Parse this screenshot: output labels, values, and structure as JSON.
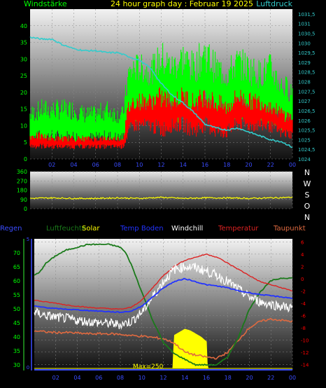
{
  "colors": {
    "windstarke": "#00ff00",
    "luftdruck": "#33cccc",
    "gust": "#ff0000",
    "direction": "#ffff00",
    "regen": "#3a4cff",
    "luftfeuchte": "#1a7a1a",
    "solar": "#ffff00",
    "temp_boden": "#2233ff",
    "windchill": "#ffffff",
    "temperatur": "#dd2222",
    "taupunkt": "#e06a40",
    "left_axis": "#00ff00",
    "right_axis_top": "#33cccc",
    "right_axis_bottom": "#ff0000",
    "xtick": "#3a4cff"
  },
  "chart_data": [
    {
      "type": "line",
      "title": "24 hour graph day : Februar 19 2025",
      "left_axis_label": "Windstärke",
      "right_axis_label": "Luftdruck",
      "left_ticks": [
        "0",
        "5",
        "10",
        "15",
        "20",
        "25",
        "30",
        "35",
        "40"
      ],
      "left_ylim": [
        0,
        45
      ],
      "right_ticks": [
        "1024",
        "1024,5",
        "1025",
        "1025,5",
        "1026",
        "1026,5",
        "1027",
        "1027,5",
        "1028",
        "1028,5",
        "1029",
        "1029,5",
        "1030",
        "1030,5",
        "1031",
        "1031,5"
      ],
      "right_ylim": [
        1024,
        1031.75
      ],
      "x_ticks": [
        "02",
        "04",
        "06",
        "08",
        "10",
        "12",
        "14",
        "16",
        "18",
        "20",
        "22",
        "00"
      ],
      "xlim": [
        0,
        24
      ],
      "grid": true,
      "series": [
        {
          "name": "Windstärke",
          "color_key": "windstarke",
          "x": [
            0,
            1,
            2,
            3,
            4,
            5,
            6,
            7,
            8,
            8.5,
            9,
            9.5,
            10,
            11,
            12,
            13,
            14,
            15,
            16,
            17,
            18,
            19,
            20,
            21,
            22,
            23,
            24
          ],
          "y_min": [
            4,
            4,
            4,
            4,
            4,
            4,
            4,
            4,
            4,
            4,
            8,
            10,
            12,
            12,
            10,
            12,
            10,
            10,
            12,
            10,
            10,
            12,
            10,
            10,
            10,
            8,
            8
          ],
          "y_max": [
            16,
            18,
            18,
            18,
            18,
            16,
            16,
            18,
            16,
            16,
            30,
            32,
            32,
            30,
            36,
            32,
            36,
            32,
            38,
            32,
            30,
            34,
            32,
            30,
            32,
            26,
            24
          ]
        },
        {
          "name": "Gust",
          "color_key": "gust",
          "x": [
            0,
            1,
            2,
            3,
            4,
            5,
            6,
            7,
            8,
            8.5,
            9,
            9.5,
            10,
            11,
            12,
            13,
            14,
            15,
            16,
            17,
            18,
            19,
            20,
            21,
            22,
            23,
            24
          ],
          "y_min": [
            3,
            3,
            3,
            3,
            3,
            3,
            3,
            3,
            3,
            3,
            6,
            8,
            8,
            8,
            6,
            8,
            8,
            6,
            8,
            6,
            6,
            8,
            8,
            8,
            8,
            6,
            6
          ],
          "y_max": [
            8,
            8,
            7,
            7,
            7,
            7,
            7,
            7,
            7,
            7,
            18,
            20,
            20,
            20,
            22,
            20,
            22,
            20,
            22,
            20,
            18,
            22,
            20,
            20,
            18,
            16,
            14
          ]
        },
        {
          "name": "Luftdruck",
          "color_key": "luftdruck",
          "axis": "right",
          "x": [
            0,
            1,
            2,
            3,
            4,
            5,
            6,
            7,
            8,
            9,
            10,
            11,
            12,
            13,
            14,
            15,
            16,
            17,
            18,
            19,
            20,
            21,
            22,
            23,
            24
          ],
          "y": [
            1030.3,
            1030.2,
            1030.2,
            1029.9,
            1029.7,
            1029.6,
            1029.6,
            1029.5,
            1029.5,
            1029.3,
            1029.1,
            1028.7,
            1027.9,
            1027.3,
            1026.9,
            1026.4,
            1025.8,
            1025.6,
            1025.5,
            1025.6,
            1025.4,
            1025.2,
            1025.0,
            1024.9,
            1024.6
          ]
        }
      ]
    },
    {
      "type": "line",
      "title": "",
      "y_ticks": [
        "0",
        "90",
        "180",
        "270",
        "360"
      ],
      "ylim": [
        0,
        360
      ],
      "compass": [
        "N",
        "W",
        "S",
        "O",
        "N"
      ],
      "x_ticks": [
        "02",
        "04",
        "06",
        "08",
        "10",
        "12",
        "14",
        "16",
        "18",
        "20",
        "22",
        "00"
      ],
      "xlim": [
        0,
        24
      ],
      "series": [
        {
          "name": "Windrichtung",
          "color_key": "direction",
          "x": [
            0,
            2,
            4,
            6,
            8,
            10,
            12,
            14,
            16,
            18,
            20,
            22,
            24
          ],
          "y": [
            100,
            105,
            100,
            100,
            105,
            100,
            110,
            100,
            105,
            105,
            100,
            105,
            110
          ]
        }
      ]
    },
    {
      "type": "line",
      "legend": [
        "Regen",
        "Luftfeuchte",
        "Solar",
        "Temp Boden",
        "Windchill",
        "Temperatur",
        "Taupunkt"
      ],
      "left_ticks": [
        "30",
        "35",
        "40",
        "45",
        "50",
        "55",
        "60",
        "65",
        "70"
      ],
      "left_ylim": [
        28,
        75
      ],
      "inner_ticks": [
        "0",
        "5"
      ],
      "right_ticks": [
        "-14",
        "-12",
        "-10",
        "-8",
        "-6",
        "-4",
        "-2",
        "0",
        "2",
        "4",
        "6"
      ],
      "right_ylim": [
        -15,
        6.5
      ],
      "x_ticks": [
        "02",
        "04",
        "06",
        "08",
        "10",
        "12",
        "14",
        "16",
        "18",
        "20",
        "22",
        "00"
      ],
      "xlim": [
        0,
        24
      ],
      "annotation": "Max=250",
      "series": [
        {
          "name": "Luftfeuchte",
          "color_key": "luftfeuchte",
          "axis": "left",
          "x": [
            0,
            0.5,
            1,
            2,
            3,
            4,
            5,
            6,
            7,
            8,
            8.5,
            9,
            10,
            11,
            12,
            13,
            14,
            15,
            16,
            17,
            18,
            19,
            20,
            21,
            22,
            23,
            24
          ],
          "y": [
            62,
            63,
            66,
            69,
            71,
            72,
            73,
            73,
            73,
            72,
            70,
            66,
            56,
            46,
            38,
            34,
            32,
            30,
            30,
            30,
            33,
            40,
            50,
            56,
            60,
            61,
            61
          ]
        },
        {
          "name": "Temperatur",
          "color_key": "temperatur",
          "axis": "right",
          "x": [
            0,
            1,
            2,
            3,
            4,
            5,
            6,
            7,
            8,
            9,
            10,
            11,
            12,
            13,
            14,
            15,
            16,
            17,
            18,
            19,
            20,
            21,
            22,
            23,
            24
          ],
          "y": [
            -3.5,
            -3.8,
            -4,
            -4.3,
            -4.5,
            -4.7,
            -4.8,
            -4.9,
            -5,
            -4.7,
            -3.5,
            -1.5,
            0.5,
            2,
            3,
            3.5,
            4,
            3.5,
            2.5,
            1.5,
            0.5,
            -0.5,
            -1,
            -1.5,
            -2
          ]
        },
        {
          "name": "Temp Boden",
          "color_key": "temp_boden",
          "axis": "right",
          "x": [
            0,
            1,
            2,
            3,
            4,
            5,
            6,
            7,
            8,
            9,
            10,
            11,
            12,
            13,
            14,
            15,
            16,
            17,
            18,
            19,
            20,
            21,
            22,
            23,
            24
          ],
          "y": [
            -4.5,
            -4.7,
            -4.9,
            -5,
            -5.1,
            -5.2,
            -5.3,
            -5.4,
            -5.5,
            -5.3,
            -4.5,
            -3,
            -1.5,
            -0.5,
            0,
            -0.5,
            -1,
            -1.2,
            -1.5,
            -2,
            -2.3,
            -2.6,
            -2.8,
            -3,
            -3.2
          ]
        },
        {
          "name": "Windchill",
          "color_key": "windchill",
          "axis": "right",
          "x": [
            0,
            1,
            2,
            3,
            4,
            5,
            6,
            7,
            8,
            9,
            10,
            11,
            12,
            13,
            14,
            15,
            16,
            17,
            18,
            19,
            20,
            21,
            22,
            23,
            24
          ],
          "y": [
            -5.5,
            -6,
            -6.3,
            -6.5,
            -6.8,
            -7,
            -7.2,
            -7.3,
            -7.5,
            -7,
            -5.5,
            -3,
            -0.5,
            1.5,
            2,
            1.8,
            1.2,
            0.5,
            -0.5,
            -1.8,
            -3,
            -3.8,
            -4.2,
            -4.5,
            -4.8
          ]
        },
        {
          "name": "Taupunkt",
          "color_key": "taupunkt",
          "axis": "right",
          "x": [
            0,
            1,
            2,
            3,
            4,
            5,
            6,
            7,
            8,
            9,
            10,
            11,
            12,
            13,
            14,
            15,
            16,
            17,
            18,
            19,
            20,
            21,
            22,
            23,
            24
          ],
          "y": [
            -8.5,
            -8.7,
            -8.8,
            -8.8,
            -8.9,
            -9,
            -9,
            -9,
            -9.1,
            -9.3,
            -9.4,
            -9.6,
            -9.8,
            -10.5,
            -12,
            -12.5,
            -12.8,
            -13,
            -12,
            -10,
            -8,
            -7,
            -6.6,
            -6.8,
            -7
          ]
        },
        {
          "name": "Solar",
          "color_key": "solar",
          "axis": "solar",
          "x": [
            0,
            12.9,
            13,
            13.5,
            14,
            14.5,
            15,
            15.5,
            16,
            16.1,
            24
          ],
          "y": [
            0,
            0,
            210,
            230,
            250,
            240,
            220,
            200,
            170,
            0,
            0
          ]
        },
        {
          "name": "Regen",
          "color_key": "regen",
          "axis": "inner",
          "x": [
            0,
            24
          ],
          "y": [
            0,
            0
          ]
        }
      ]
    }
  ]
}
